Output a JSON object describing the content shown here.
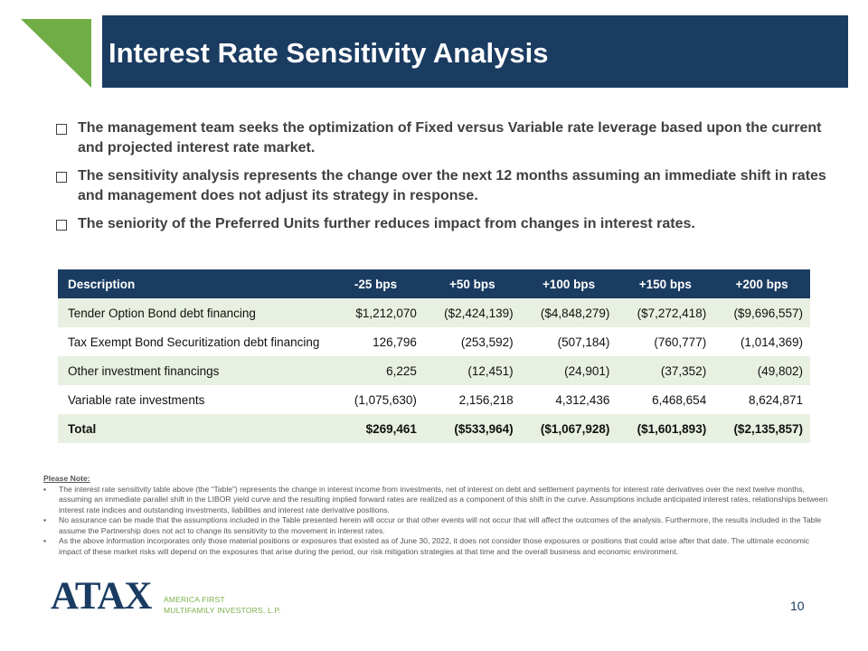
{
  "header": {
    "title": "Interest Rate Sensitivity Analysis"
  },
  "bullets": [
    "The management team seeks the optimization of Fixed versus Variable rate leverage based upon the current and projected interest rate market.",
    "The sensitivity analysis represents the change over the next 12 months assuming an immediate shift in rates and management does not adjust its strategy in response.",
    "The seniority of the Preferred Units further reduces impact from changes in interest rates."
  ],
  "table": {
    "headers": [
      "Description",
      "-25 bps",
      "+50 bps",
      "+100 bps",
      "+150 bps",
      "+200 bps"
    ],
    "rows": [
      [
        "Tender Option Bond debt financing",
        "$1,212,070",
        "($2,424,139)",
        "($4,848,279)",
        "($7,272,418)",
        "($9,696,557)"
      ],
      [
        "Tax Exempt Bond Securitization debt financing",
        "126,796",
        "(253,592)",
        "(507,184)",
        "(760,777)",
        "(1,014,369)"
      ],
      [
        "Other investment financings",
        "6,225",
        "(12,451)",
        "(24,901)",
        "(37,352)",
        "(49,802)"
      ],
      [
        "Variable rate investments",
        "(1,075,630)",
        "2,156,218",
        "4,312,436",
        "6,468,654",
        "8,624,871"
      ],
      [
        "Total",
        "$269,461",
        "($533,964)",
        "($1,067,928)",
        "($1,601,893)",
        "($2,135,857)"
      ]
    ]
  },
  "notes": {
    "heading": "Please Note:",
    "items": [
      "The interest rate sensitivity table above (the “Table”) represents the change in interest income from investments, net of interest on debt and settlement payments for interest rate derivatives over the next twelve months, assuming an immediate parallel shift in the LIBOR yield curve and the resulting implied forward rates are realized as a component of this shift in the curve. Assumptions include anticipated interest rates, relationships between interest rate indices and outstanding investments, liabilities and interest rate derivative positions.",
      "No assurance can be made that the assumptions included in the Table presented herein will occur or that other events will not occur that will affect the outcomes of the analysis. Furthermore, the results included in the Table assume the Partnership does not act to change its sensitivity to the movement in interest rates.",
      "As the above information incorporates only those material positions or exposures that existed as of June 30, 2022, it does not consider those exposures or positions that could arise after that date. The ultimate economic impact of these market risks will depend on the exposures that arise during the period, our risk mitigation strategies at that time and the overall business and economic environment."
    ]
  },
  "footer": {
    "logo": "ATAX",
    "logo_line1": "AMERICA FIRST",
    "logo_line2": "MULTIFAMILY INVESTORS, L.P.",
    "page_number": "10"
  }
}
